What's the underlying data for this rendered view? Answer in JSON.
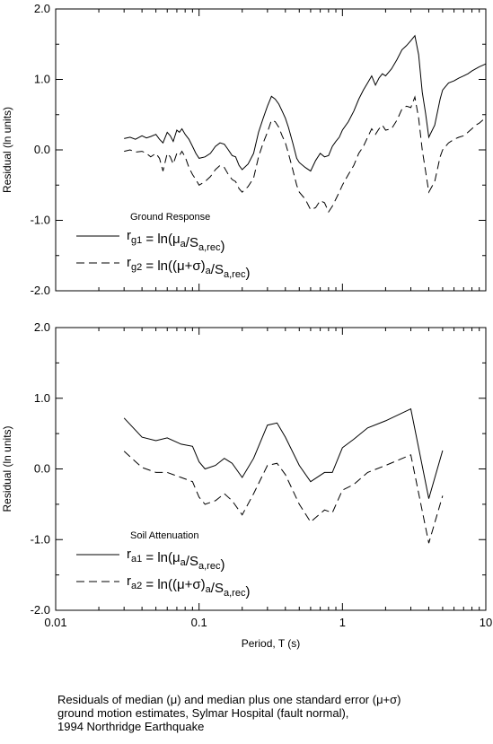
{
  "chart_data": [
    {
      "type": "line",
      "ylabel": "Residual (ln units)",
      "xlabel": "",
      "xscale": "log",
      "xlim": [
        0.01,
        10
      ],
      "ylim": [
        -2.0,
        2.0
      ],
      "x_ticks": [
        "0.01",
        "0.1",
        "1",
        "10"
      ],
      "y_ticks": [
        "2.0",
        "1.0",
        "0.0",
        "-1.0",
        "-2.0"
      ],
      "legend_title": "Ground Response",
      "legend_placement": "lower-left",
      "series": [
        {
          "name": "rg1 = ln(μa/Sa,rec)",
          "name_parts": {
            "var": "r",
            "sub": "g1",
            "eq": " = ln(μ",
            "sub2": "a",
            "mid": "/S",
            "sub3": "a,rec",
            "end": ")"
          },
          "style": "solid",
          "x": [
            0.03,
            0.033,
            0.036,
            0.04,
            0.043,
            0.046,
            0.05,
            0.053,
            0.056,
            0.06,
            0.063,
            0.066,
            0.07,
            0.073,
            0.076,
            0.08,
            0.085,
            0.09,
            0.095,
            0.1,
            0.11,
            0.12,
            0.13,
            0.14,
            0.15,
            0.16,
            0.17,
            0.18,
            0.19,
            0.2,
            0.22,
            0.24,
            0.26,
            0.28,
            0.3,
            0.32,
            0.34,
            0.36,
            0.38,
            0.4,
            0.42,
            0.45,
            0.48,
            0.5,
            0.55,
            0.6,
            0.65,
            0.7,
            0.75,
            0.8,
            0.85,
            0.9,
            0.95,
            1.0,
            1.1,
            1.2,
            1.3,
            1.4,
            1.5,
            1.6,
            1.7,
            1.8,
            1.9,
            2.0,
            2.2,
            2.4,
            2.6,
            2.8,
            3.0,
            3.2,
            3.4,
            3.6,
            3.8,
            4.0,
            4.4,
            4.8,
            5.0,
            5.5,
            6.0,
            6.5,
            7.0,
            7.5,
            8.0,
            8.5,
            9.0,
            9.5,
            10.0
          ],
          "y": [
            0.16,
            0.18,
            0.15,
            0.2,
            0.17,
            0.19,
            0.22,
            0.15,
            0.1,
            0.25,
            0.2,
            0.12,
            0.28,
            0.25,
            0.3,
            0.22,
            0.15,
            0.05,
            -0.05,
            -0.12,
            -0.1,
            -0.05,
            0.05,
            0.1,
            0.08,
            0.0,
            -0.08,
            -0.1,
            -0.22,
            -0.28,
            -0.2,
            -0.05,
            0.25,
            0.45,
            0.62,
            0.76,
            0.72,
            0.65,
            0.55,
            0.45,
            0.32,
            0.1,
            -0.12,
            -0.18,
            -0.25,
            -0.3,
            -0.15,
            -0.05,
            -0.1,
            -0.08,
            0.05,
            0.12,
            0.18,
            0.28,
            0.4,
            0.55,
            0.72,
            0.85,
            0.95,
            1.05,
            0.92,
            1.02,
            1.08,
            1.05,
            1.15,
            1.28,
            1.42,
            1.48,
            1.55,
            1.62,
            1.35,
            0.82,
            0.52,
            0.18,
            0.35,
            0.72,
            0.85,
            0.95,
            0.98,
            1.02,
            1.05,
            1.08,
            1.12,
            1.15,
            1.18,
            1.2,
            1.22
          ]
        },
        {
          "name": "rg2 = ln((μ+σ)a/Sa,rec)",
          "name_parts": {
            "var": "r",
            "sub": "g2",
            "eq": " = ln((μ+σ)",
            "sub2": "a",
            "mid": "/S",
            "sub3": "a,rec",
            "end": ")"
          },
          "style": "dashed",
          "x": [
            0.03,
            0.033,
            0.036,
            0.04,
            0.043,
            0.046,
            0.05,
            0.053,
            0.056,
            0.06,
            0.063,
            0.066,
            0.07,
            0.073,
            0.076,
            0.08,
            0.085,
            0.09,
            0.095,
            0.1,
            0.11,
            0.12,
            0.13,
            0.14,
            0.15,
            0.16,
            0.17,
            0.18,
            0.19,
            0.2,
            0.22,
            0.24,
            0.26,
            0.28,
            0.3,
            0.32,
            0.34,
            0.36,
            0.38,
            0.4,
            0.42,
            0.45,
            0.48,
            0.5,
            0.55,
            0.6,
            0.65,
            0.7,
            0.75,
            0.8,
            0.85,
            0.9,
            0.95,
            1.0,
            1.1,
            1.2,
            1.3,
            1.4,
            1.5,
            1.6,
            1.7,
            1.8,
            1.9,
            2.0,
            2.2,
            2.4,
            2.6,
            2.8,
            3.0,
            3.2,
            3.4,
            3.6,
            3.8,
            4.0,
            4.4,
            4.8,
            5.0,
            5.5,
            6.0,
            6.5,
            7.0,
            7.5,
            8.0,
            8.5,
            9.0,
            9.5,
            10.0
          ],
          "y": [
            -0.02,
            0.0,
            -0.03,
            -0.02,
            -0.05,
            -0.1,
            -0.05,
            -0.12,
            -0.3,
            -0.05,
            -0.1,
            -0.2,
            -0.05,
            -0.08,
            -0.02,
            -0.1,
            -0.25,
            -0.35,
            -0.42,
            -0.5,
            -0.45,
            -0.38,
            -0.28,
            -0.22,
            -0.25,
            -0.35,
            -0.42,
            -0.45,
            -0.55,
            -0.6,
            -0.52,
            -0.4,
            -0.1,
            0.1,
            0.25,
            0.42,
            0.4,
            0.32,
            0.2,
            0.1,
            -0.05,
            -0.28,
            -0.5,
            -0.6,
            -0.7,
            -0.85,
            -0.82,
            -0.72,
            -0.75,
            -0.88,
            -0.8,
            -0.7,
            -0.6,
            -0.5,
            -0.35,
            -0.22,
            -0.05,
            0.05,
            0.18,
            0.3,
            0.22,
            0.3,
            0.35,
            0.28,
            0.3,
            0.42,
            0.58,
            0.62,
            0.6,
            0.75,
            0.45,
            0.0,
            -0.3,
            -0.6,
            -0.45,
            -0.1,
            0.0,
            0.1,
            0.15,
            0.18,
            0.2,
            0.25,
            0.3,
            0.35,
            0.38,
            0.42,
            0.48
          ]
        }
      ]
    },
    {
      "type": "line",
      "ylabel": "Residual (ln units)",
      "xlabel": "Period, T (s)",
      "xscale": "log",
      "xlim": [
        0.01,
        10
      ],
      "ylim": [
        -2.0,
        2.0
      ],
      "x_ticks": [
        "0.01",
        "0.1",
        "1",
        "10"
      ],
      "y_ticks": [
        "2.0",
        "1.0",
        "0.0",
        "-1.0",
        "-2.0"
      ],
      "legend_title": "Soil Attenuation",
      "legend_placement": "lower-left",
      "series": [
        {
          "name": "ra1 = ln(μa/Sa,rec)",
          "name_parts": {
            "var": "r",
            "sub": "a1",
            "eq": " = ln(μ",
            "sub2": "a",
            "mid": "/S",
            "sub3": "a,rec",
            "end": ")"
          },
          "style": "solid",
          "x": [
            0.03,
            0.04,
            0.05,
            0.06,
            0.075,
            0.09,
            0.1,
            0.11,
            0.13,
            0.15,
            0.17,
            0.2,
            0.24,
            0.3,
            0.35,
            0.4,
            0.5,
            0.6,
            0.75,
            0.85,
            1.0,
            1.2,
            1.5,
            2.0,
            3.0,
            4.0,
            5.0
          ],
          "y": [
            0.72,
            0.45,
            0.4,
            0.44,
            0.35,
            0.32,
            0.1,
            0.0,
            0.05,
            0.15,
            0.08,
            -0.12,
            0.15,
            0.62,
            0.65,
            0.45,
            0.05,
            -0.18,
            -0.05,
            -0.05,
            0.3,
            0.42,
            0.58,
            0.68,
            0.85,
            -0.42,
            0.26
          ]
        },
        {
          "name": "ra2 = ln((μ+σ)a/Sa,rec)",
          "name_parts": {
            "var": "r",
            "sub": "a2",
            "eq": " = ln((μ+σ)",
            "sub2": "a",
            "mid": "/S",
            "sub3": "a,rec",
            "end": ")"
          },
          "style": "dashed",
          "x": [
            0.03,
            0.04,
            0.05,
            0.06,
            0.075,
            0.09,
            0.1,
            0.11,
            0.13,
            0.15,
            0.17,
            0.2,
            0.24,
            0.3,
            0.35,
            0.4,
            0.5,
            0.6,
            0.75,
            0.85,
            1.0,
            1.2,
            1.5,
            2.0,
            3.0,
            4.0,
            5.0
          ],
          "y": [
            0.25,
            0.02,
            -0.05,
            -0.05,
            -0.12,
            -0.18,
            -0.4,
            -0.5,
            -0.45,
            -0.35,
            -0.45,
            -0.65,
            -0.35,
            0.05,
            0.08,
            -0.08,
            -0.5,
            -0.75,
            -0.58,
            -0.62,
            -0.3,
            -0.22,
            -0.05,
            0.05,
            0.2,
            -1.05,
            -0.38
          ]
        }
      ]
    }
  ],
  "caption": {
    "line1": "Residuals of median (μ) and median plus one standard error (μ+σ)",
    "line2": "ground motion estimates, Sylmar Hospital (fault normal),",
    "line3": "1994 Northridge Earthquake"
  }
}
